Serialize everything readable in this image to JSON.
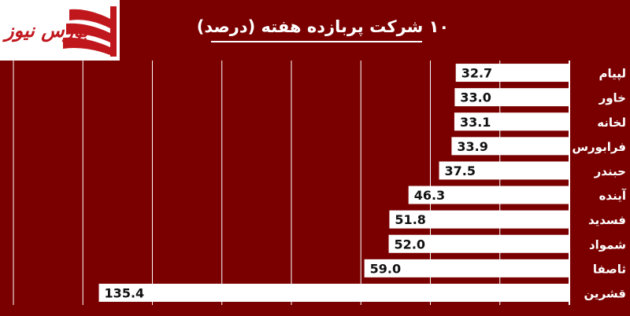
{
  "logo": {
    "text": "بورس نیوز",
    "icon": "red-waves-logo-icon"
  },
  "colors": {
    "background": "#7a0000",
    "bar": "#ffffff",
    "grid": "#ffffff",
    "accent": "#c0171d"
  },
  "chart_data": {
    "type": "bar",
    "orientation": "horizontal",
    "title": "۱۰ شرکت پربازده هفته (درصد)",
    "categories": [
      "لپیام",
      "خاور",
      "لخانه",
      "فرابورس",
      "حبندر",
      "آینده",
      "فسدید",
      "شمواد",
      "ثاصفا",
      "قشرین"
    ],
    "values": [
      32.7,
      33.0,
      33.1,
      33.9,
      37.5,
      46.3,
      51.8,
      52.0,
      59.0,
      135.4
    ],
    "value_labels": [
      "32.7",
      "33.0",
      "33.1",
      "33.9",
      "37.5",
      "46.3",
      "51.8",
      "52.0",
      "59.0",
      "135.4"
    ],
    "xlim": [
      0,
      160
    ],
    "x_direction": "right-to-left",
    "grid": true
  }
}
